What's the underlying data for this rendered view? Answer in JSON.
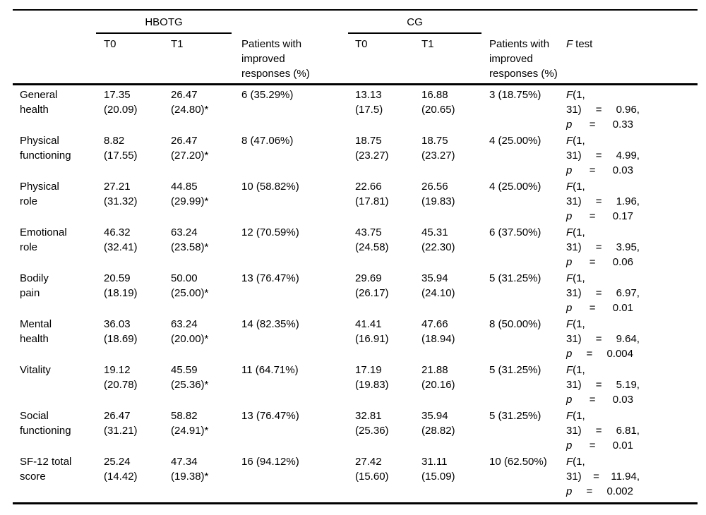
{
  "colors": {
    "background": "#ffffff",
    "text": "#000000",
    "rule": "#000000"
  },
  "header": {
    "group_hbotg": "HBOTG",
    "group_cg": "CG",
    "hbotg_t0": "T0",
    "hbotg_t1": "T1",
    "hbotg_improved": "Patients with\nimproved\nresponses (%)",
    "cg_t0": "T0",
    "cg_t1": "T1",
    "cg_improved": "Patients with\nimproved\nresponses (%)",
    "ftest_f": "F",
    "ftest_rest": "test"
  },
  "rows": [
    {
      "label": "General\nhealth",
      "h_t0": "17.35\n(20.09)",
      "h_t1": "26.47\n(24.80)*",
      "h_imp": "6 (35.29%)",
      "c_t0": "13.13\n(17.5)",
      "c_t1": "16.88\n(20.65)",
      "c_imp": "3 (18.75%)",
      "f": [
        "F",
        "(1,",
        "31)",
        "=",
        "0.96,",
        "p",
        "=",
        "0.33"
      ]
    },
    {
      "label": "Physical\nfunctioning",
      "h_t0": "8.82\n(17.55)",
      "h_t1": "26.47\n(27.20)*",
      "h_imp": "8 (47.06%)",
      "c_t0": "18.75\n(23.27)",
      "c_t1": "18.75\n(23.27)",
      "c_imp": "4 (25.00%)",
      "f": [
        "F",
        "(1,",
        "31)",
        "=",
        "4.99,",
        "p",
        "=",
        "0.03"
      ]
    },
    {
      "label": "Physical\nrole",
      "h_t0": "27.21\n(31.32)",
      "h_t1": "44.85\n(29.99)*",
      "h_imp": "10 (58.82%)",
      "c_t0": "22.66\n(17.81)",
      "c_t1": "26.56\n(19.83)",
      "c_imp": "4 (25.00%)",
      "f": [
        "F",
        "(1,",
        "31)",
        "=",
        "1.96,",
        "p",
        "=",
        "0.17"
      ]
    },
    {
      "label": "Emotional\nrole",
      "h_t0": "46.32\n(32.41)",
      "h_t1": "63.24\n(23.58)*",
      "h_imp": "12 (70.59%)",
      "c_t0": "43.75\n(24.58)",
      "c_t1": "45.31\n(22.30)",
      "c_imp": "6 (37.50%)",
      "f": [
        "F",
        "(1,",
        "31)",
        "=",
        "3.95,",
        "p",
        "=",
        "0.06"
      ]
    },
    {
      "label": "Bodily\npain",
      "h_t0": "20.59\n(18.19)",
      "h_t1": "50.00\n(25.00)*",
      "h_imp": "13 (76.47%)",
      "c_t0": "29.69\n(26.17)",
      "c_t1": "35.94\n(24.10)",
      "c_imp": "5 (31.25%)",
      "f": [
        "F",
        "(1,",
        "31)",
        "=",
        "6.97,",
        "p",
        "=",
        "0.01"
      ]
    },
    {
      "label": "Mental\nhealth",
      "h_t0": "36.03\n(18.69)",
      "h_t1": "63.24\n(20.00)*",
      "h_imp": "14 (82.35%)",
      "c_t0": "41.41\n(16.91)",
      "c_t1": "47.66\n(18.94)",
      "c_imp": "8 (50.00%)",
      "f": [
        "F",
        "(1,",
        "31)",
        "=",
        "9.64,",
        "p",
        "=",
        "0.004"
      ]
    },
    {
      "label": "Vitality",
      "h_t0": "19.12\n(20.78)",
      "h_t1": "45.59\n(25.36)*",
      "h_imp": "11 (64.71%)",
      "c_t0": "17.19\n(19.83)",
      "c_t1": "21.88\n(20.16)",
      "c_imp": "5 (31.25%)",
      "f": [
        "F",
        "(1,",
        "31)",
        "=",
        "5.19,",
        "p",
        "=",
        "0.03"
      ]
    },
    {
      "label": "Social\nfunctioning",
      "h_t0": "26.47\n(31.21)",
      "h_t1": "58.82\n(24.91)*",
      "h_imp": "13 (76.47%)",
      "c_t0": "32.81\n(25.36)",
      "c_t1": "35.94\n(28.82)",
      "c_imp": "5 (31.25%)",
      "f": [
        "F",
        "(1,",
        "31)",
        "=",
        "6.81,",
        "p",
        "=",
        "0.01"
      ]
    },
    {
      "label": "SF-12 total\nscore",
      "h_t0": "25.24\n(14.42)",
      "h_t1": "47.34\n(19.38)*",
      "h_imp": "16 (94.12%)",
      "c_t0": "27.42\n(15.60)",
      "c_t1": "31.11\n(15.09)",
      "c_imp": "10 (62.50%)",
      "f": [
        "F",
        "(1,",
        "31)",
        "=",
        "11.94,",
        "p",
        "=",
        "0.002"
      ]
    }
  ]
}
